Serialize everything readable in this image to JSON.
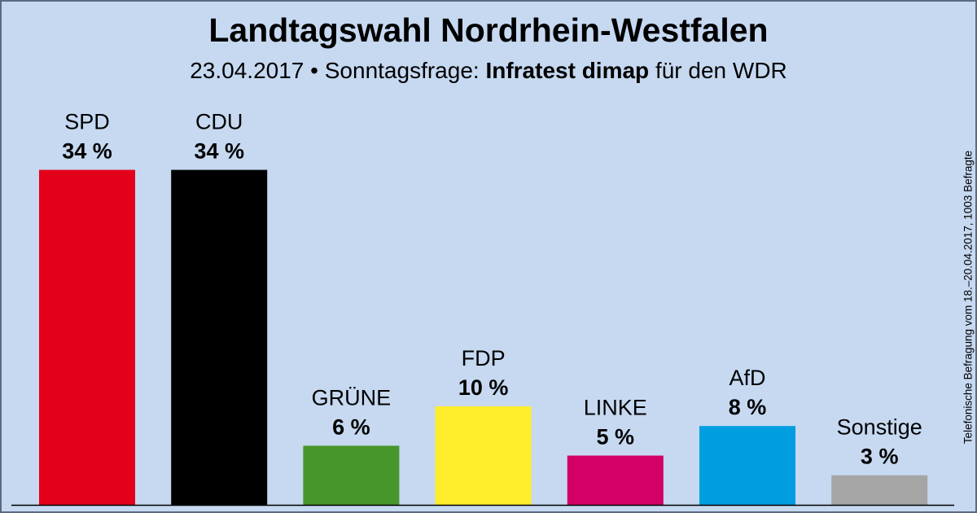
{
  "title": "Landtagswahl Nordrhein-Westfalen",
  "subtitle": {
    "date": "23.04.2017",
    "separator": "•",
    "poll_type": "Sonntagsfrage:",
    "institute": "Infratest dimap",
    "client": "für den WDR"
  },
  "side_note": "Telefonische Befragung vom 18.–20.04.2017, 1003 Befragte",
  "colors": {
    "background": "#c6d9f1",
    "SPD": "#e3001b",
    "CDU": "#000000",
    "GRÜNE": "#46962b",
    "FDP": "#ffed2c",
    "LINKE": "#d20067",
    "AfD": "#009ee0",
    "Sonstige": "#a5a5a5"
  },
  "chart_data": {
    "type": "bar",
    "title": "Landtagswahl Nordrhein-Westfalen",
    "xlabel": "",
    "ylabel": "",
    "unit": "%",
    "categories": [
      "SPD",
      "CDU",
      "GRÜNE",
      "FDP",
      "LINKE",
      "AfD",
      "Sonstige"
    ],
    "values": [
      34,
      34,
      6,
      10,
      5,
      8,
      3
    ],
    "value_labels": [
      "34 %",
      "34 %",
      "6 %",
      "10 %",
      "5 %",
      "8 %",
      "3 %"
    ],
    "grid": false,
    "legend": "none"
  }
}
